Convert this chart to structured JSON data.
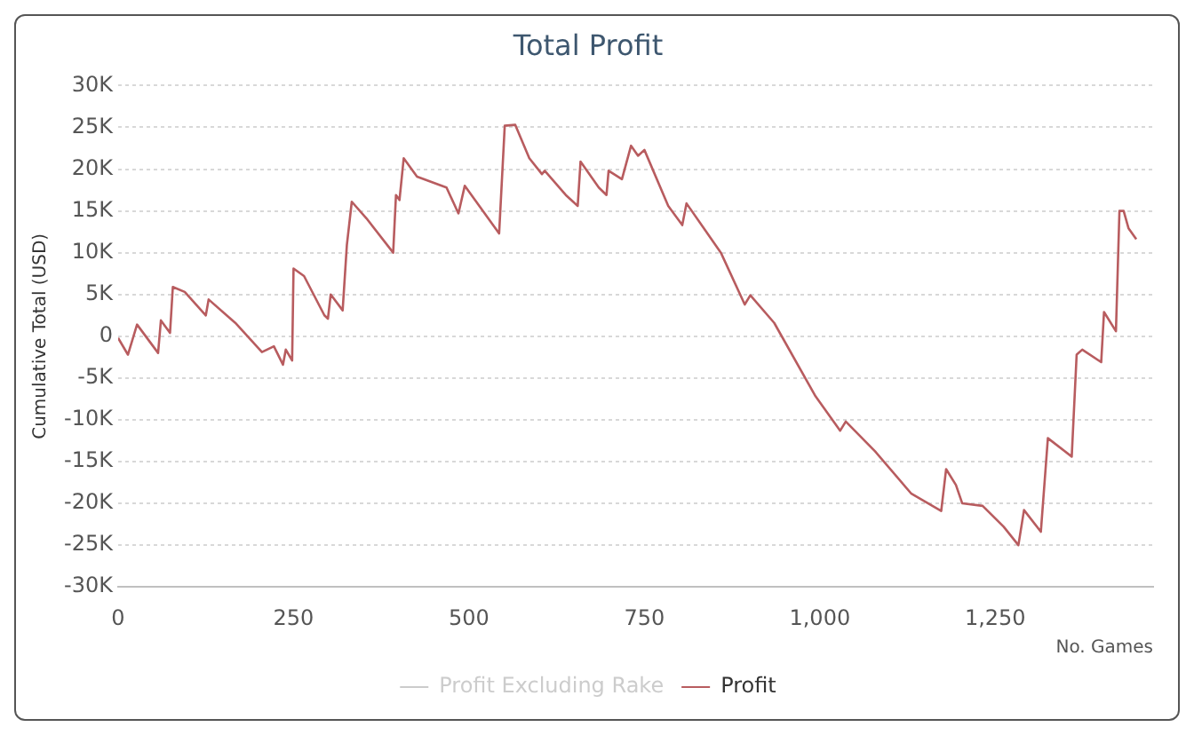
{
  "chart_data": {
    "type": "line",
    "title": "Total Profit",
    "xlabel": "No. Games",
    "ylabel": "Cumulative Total (USD)",
    "xlim": [
      0,
      1475
    ],
    "xticks": [
      0,
      250,
      500,
      {
        "value": 750,
        "label": "750"
      },
      {
        "value": 1000,
        "label": "1,000"
      },
      {
        "value": 1250,
        "label": "1,250"
      }
    ],
    "ylim": [
      -30000,
      30000
    ],
    "yticks": [
      {
        "value": -30000,
        "label": "-30K"
      },
      {
        "value": -25000,
        "label": "-25K"
      },
      {
        "value": -20000,
        "label": "-20K"
      },
      {
        "value": -15000,
        "label": "-15K"
      },
      {
        "value": -10000,
        "label": "-10K"
      },
      {
        "value": -5000,
        "label": "-5K"
      },
      0,
      {
        "value": 5000,
        "label": "5K"
      },
      {
        "value": 10000,
        "label": "10K"
      },
      {
        "value": 15000,
        "label": "15K"
      },
      {
        "value": 20000,
        "label": "20K"
      },
      {
        "value": 25000,
        "label": "25K"
      },
      {
        "value": 30000,
        "label": "30K"
      }
    ],
    "grid": "y",
    "legend": "bottom",
    "marker": "none",
    "line_style": "solid",
    "series": [
      {
        "name": "Profit Excluding Rake",
        "color": "#cccccc"
      },
      {
        "name": "Profit",
        "color": "#b85c5f",
        "x": [
          0,
          14,
          27,
          57,
          61,
          74,
          78,
          95,
          125,
          129,
          167,
          205,
          222,
          235,
          239,
          248,
          250,
          265,
          294,
          299,
          303,
          320,
          326,
          333,
          354,
          392,
          396,
          401,
          407,
          426,
          468,
          485,
          494,
          543,
          551,
          566,
          586,
          604,
          608,
          638,
          655,
          659,
          685,
          696,
          699,
          718,
          731,
          741,
          750,
          784,
          804,
          810,
          859,
          893,
          901,
          935,
          994,
          1029,
          1037,
          1079,
          1130,
          1173,
          1180,
          1194,
          1203,
          1232,
          1262,
          1283,
          1291,
          1315,
          1325,
          1359,
          1366,
          1374,
          1401,
          1405,
          1422,
          1427,
          1433,
          1440,
          1451
        ],
        "values": [
          -200,
          -2200,
          1400,
          -2000,
          1900,
          400,
          5900,
          5300,
          2500,
          4400,
          1600,
          -1900,
          -1200,
          -3400,
          -1600,
          -2900,
          8100,
          7200,
          2500,
          2100,
          5000,
          3100,
          10900,
          16100,
          14100,
          10000,
          16900,
          16300,
          21300,
          19100,
          17800,
          14700,
          18000,
          12300,
          25200,
          25300,
          21300,
          19400,
          19800,
          16900,
          15600,
          20900,
          17800,
          16900,
          19800,
          18800,
          22800,
          21600,
          22300,
          15600,
          13300,
          15900,
          10000,
          3800,
          4900,
          1600,
          -7200,
          -11300,
          -10200,
          -13800,
          -18800,
          -20900,
          -15900,
          -17800,
          -20000,
          -20300,
          -22800,
          -25000,
          -20800,
          -23400,
          -12200,
          -14400,
          -2200,
          -1600,
          -3100,
          2900,
          600,
          15000,
          15000,
          12900,
          11600
        ]
      }
    ]
  }
}
